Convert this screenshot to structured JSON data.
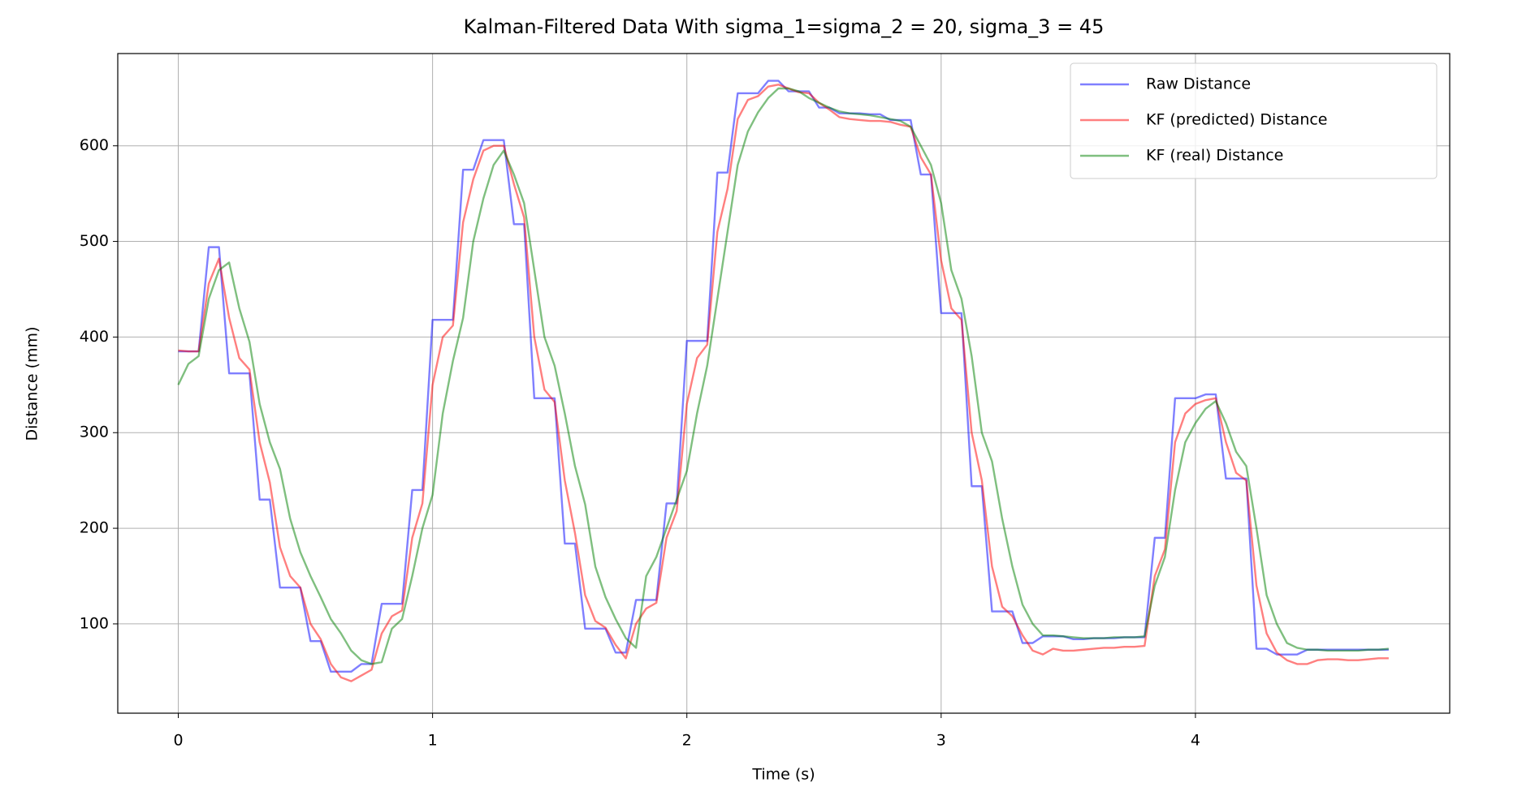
{
  "chart_data": {
    "type": "line",
    "title": "Kalman-Filtered Data With sigma_1=sigma_2 = 20, sigma_3 = 45",
    "x_label": "Time (s)",
    "y_label": "Distance (mm)",
    "x": [
      0,
      0.04,
      0.08,
      0.12,
      0.16,
      0.2,
      0.24,
      0.28,
      0.32,
      0.36,
      0.4,
      0.44,
      0.48,
      0.52,
      0.56,
      0.6,
      0.64,
      0.68,
      0.72,
      0.76,
      0.8,
      0.84,
      0.88,
      0.92,
      0.96,
      1.0,
      1.04,
      1.08,
      1.12,
      1.16,
      1.2,
      1.24,
      1.28,
      1.32,
      1.36,
      1.4,
      1.44,
      1.48,
      1.52,
      1.56,
      1.6,
      1.64,
      1.68,
      1.72,
      1.76,
      1.8,
      1.84,
      1.88,
      1.92,
      1.96,
      2.0,
      2.04,
      2.08,
      2.12,
      2.16,
      2.2,
      2.24,
      2.28,
      2.32,
      2.36,
      2.4,
      2.44,
      2.48,
      2.52,
      2.56,
      2.6,
      2.64,
      2.68,
      2.72,
      2.76,
      2.8,
      2.84,
      2.88,
      2.92,
      2.96,
      3.0,
      3.04,
      3.08,
      3.12,
      3.16,
      3.2,
      3.24,
      3.28,
      3.32,
      3.36,
      3.4,
      3.44,
      3.48,
      3.52,
      3.56,
      3.6,
      3.64,
      3.68,
      3.72,
      3.76,
      3.8,
      3.84,
      3.88,
      3.92,
      3.96,
      4.0,
      4.04,
      4.08,
      4.12,
      4.16,
      4.2,
      4.24,
      4.28,
      4.32,
      4.36,
      4.4,
      4.44,
      4.48,
      4.52,
      4.56,
      4.6,
      4.64,
      4.68,
      4.72,
      4.76
    ],
    "series": [
      {
        "name": "Raw Distance",
        "color": "#0000ff",
        "values": [
          385,
          385,
          385,
          494,
          494,
          362,
          362,
          362,
          230,
          230,
          138,
          138,
          138,
          82,
          82,
          50,
          50,
          50,
          58,
          58,
          121,
          121,
          121,
          240,
          240,
          418,
          418,
          418,
          575,
          575,
          606,
          606,
          606,
          518,
          518,
          336,
          336,
          336,
          184,
          184,
          95,
          95,
          95,
          70,
          70,
          125,
          125,
          125,
          226,
          226,
          396,
          396,
          396,
          572,
          572,
          655,
          655,
          655,
          668,
          668,
          657,
          657,
          657,
          640,
          640,
          634,
          634,
          634,
          633,
          633,
          627,
          627,
          627,
          570,
          570,
          425,
          425,
          425,
          244,
          244,
          113,
          113,
          113,
          80,
          80,
          87,
          87,
          87,
          84,
          84,
          85,
          85,
          85,
          86,
          86,
          86,
          190,
          190,
          336,
          336,
          336,
          340,
          340,
          252,
          252,
          252,
          74,
          74,
          68,
          68,
          68,
          73,
          73,
          73,
          73,
          73,
          73,
          73,
          73,
          73
        ]
      },
      {
        "name": "KF (predicted) Distance",
        "color": "#ff0000",
        "values": [
          386,
          385,
          385,
          456,
          482,
          420,
          378,
          366,
          290,
          248,
          180,
          150,
          138,
          100,
          84,
          58,
          44,
          40,
          46,
          52,
          90,
          108,
          114,
          190,
          226,
          350,
          400,
          412,
          520,
          565,
          595,
          600,
          600,
          560,
          525,
          400,
          345,
          332,
          250,
          195,
          130,
          103,
          96,
          78,
          64,
          100,
          116,
          122,
          190,
          218,
          330,
          378,
          392,
          510,
          555,
          628,
          648,
          652,
          662,
          664,
          660,
          656,
          655,
          645,
          638,
          630,
          628,
          627,
          626,
          626,
          625,
          622,
          620,
          588,
          570,
          480,
          430,
          418,
          300,
          250,
          160,
          118,
          108,
          88,
          72,
          68,
          74,
          72,
          72,
          73,
          74,
          75,
          75,
          76,
          76,
          77,
          150,
          178,
          290,
          320,
          330,
          334,
          336,
          290,
          258,
          250,
          140,
          90,
          70,
          62,
          58,
          58,
          62,
          63,
          63,
          62,
          62,
          63,
          64,
          64
        ]
      },
      {
        "name": "KF (real) Distance",
        "color": "#008000",
        "values": [
          350,
          372,
          380,
          440,
          470,
          478,
          430,
          395,
          330,
          290,
          262,
          210,
          175,
          150,
          128,
          105,
          90,
          72,
          62,
          58,
          60,
          95,
          105,
          150,
          200,
          235,
          320,
          375,
          420,
          500,
          545,
          580,
          595,
          570,
          540,
          470,
          400,
          370,
          320,
          265,
          225,
          160,
          128,
          105,
          85,
          75,
          150,
          170,
          200,
          230,
          260,
          320,
          370,
          440,
          510,
          580,
          615,
          635,
          650,
          660,
          660,
          657,
          650,
          645,
          640,
          636,
          634,
          633,
          632,
          630,
          628,
          626,
          620,
          600,
          580,
          540,
          470,
          440,
          380,
          300,
          270,
          210,
          160,
          120,
          100,
          88,
          88,
          87,
          86,
          85,
          85,
          85,
          86,
          86,
          86,
          87,
          140,
          170,
          240,
          290,
          310,
          325,
          333,
          310,
          280,
          265,
          200,
          130,
          100,
          80,
          75,
          73,
          73,
          72,
          72,
          72,
          72,
          73,
          73,
          74
        ]
      }
    ],
    "alpha": 0.5,
    "xlim": [
      -0.238,
      5.0
    ],
    "xticks": [
      0,
      1,
      2,
      3,
      4
    ],
    "ylim": [
      6.6,
      696.5
    ],
    "yticks": [
      100,
      200,
      300,
      400,
      500,
      600
    ],
    "grid": true,
    "legend": "upper right"
  }
}
